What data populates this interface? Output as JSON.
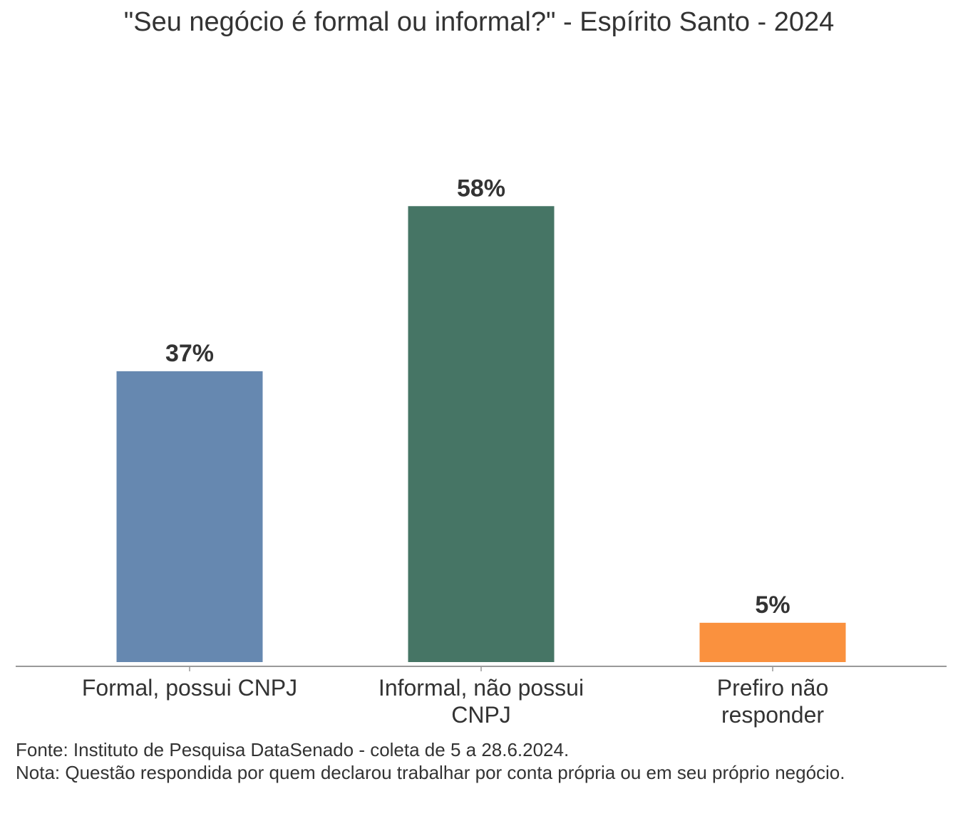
{
  "chart_data": {
    "type": "bar",
    "title": "\"Seu negócio é formal ou informal?\" - Espírito Santo - 2024",
    "categories": [
      [
        "Formal, possui CNPJ"
      ],
      [
        "Informal, não possui",
        "CNPJ"
      ],
      [
        "Prefiro não",
        "responder"
      ]
    ],
    "values": [
      37,
      58,
      5
    ],
    "value_labels": [
      "37%",
      "58%",
      "5%"
    ],
    "colors": [
      "#6688b0",
      "#467565",
      "#fa913e"
    ],
    "ylim": [
      0,
      65
    ],
    "grid": false,
    "xlabel": "",
    "ylabel": ""
  },
  "footer": {
    "source": "Fonte: Instituto de Pesquisa DataSenado - coleta de 5 a 28.6.2024.",
    "note": "Nota: Questão respondida por quem declarou trabalhar por conta própria ou em seu próprio negócio."
  }
}
